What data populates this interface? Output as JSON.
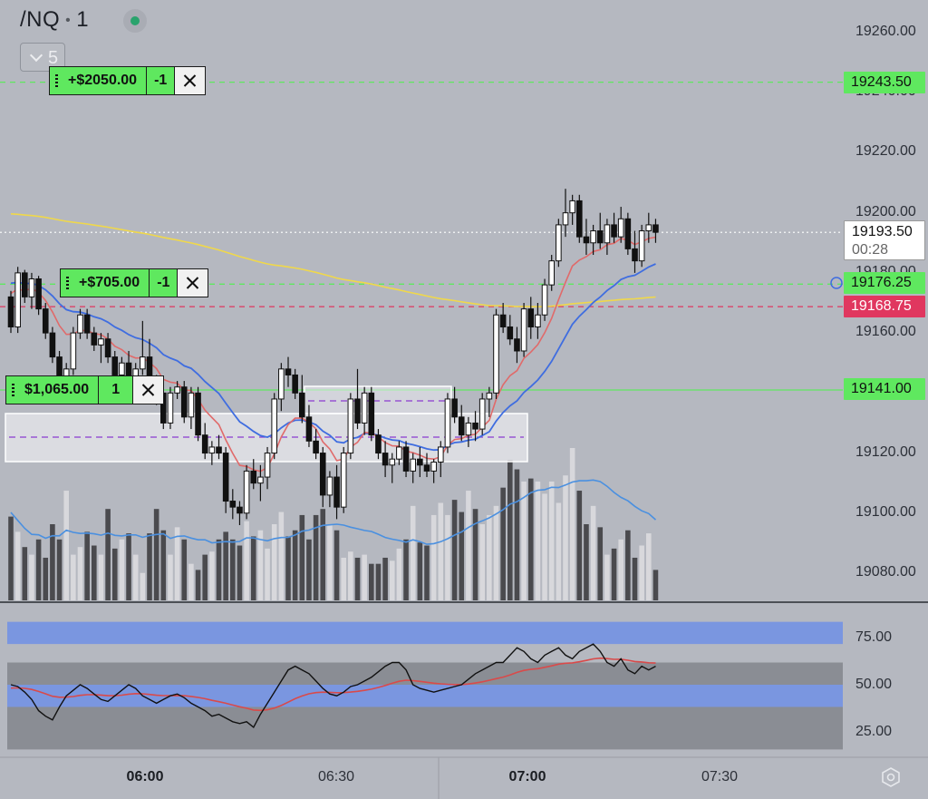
{
  "header": {
    "symbol": "/NQ",
    "interval": "1",
    "interval_selector": "5"
  },
  "price_axis": {
    "ticks": [
      "19260.00",
      "19240.00",
      "19220.00",
      "19200.00",
      "19180.00",
      "19160.00",
      "19140.00",
      "19120.00",
      "19100.00",
      "19080.00"
    ],
    "tick_values": [
      19260,
      19240,
      19220,
      19200,
      19180,
      19160,
      19140,
      19120,
      19100,
      19080
    ]
  },
  "price_tags": {
    "target_1": "19243.50",
    "last_price": "19193.50",
    "countdown": "00:28",
    "target_2": "19176.25",
    "stop": "19168.75",
    "entry": "19141.00"
  },
  "orders": [
    {
      "pnl": "+$2050.00",
      "qty": "-1"
    },
    {
      "pnl": "+$705.00",
      "qty": "-1"
    },
    {
      "pnl": "$1,065.00",
      "qty": "1"
    }
  ],
  "time_axis": {
    "labels": [
      "06:00",
      "06:30",
      "07:00",
      "07:30"
    ],
    "bold": [
      true,
      false,
      true,
      false
    ]
  },
  "oscillator": {
    "ticks": [
      "75.00",
      "50.00",
      "25.00"
    ]
  },
  "colors": {
    "background": "#b5b8c0",
    "up_candle": "#ffffff",
    "down_candle": "#111111",
    "ema_fast": "#e06a6a",
    "ema_slow": "#3f6de0",
    "sma_long": "#f0d84a",
    "target_line": "#5fe85f",
    "stop_line": "#e0375f",
    "volume_up": "#d8d8dc",
    "volume_down": "#4a4a4e",
    "volume_ma": "#4a90e0",
    "osc_band": "#7a96e0",
    "osc_line": "#111111",
    "osc_signal": "#d94a4a"
  },
  "chart_data": {
    "type": "candlestick",
    "ylim": [
      19072,
      19266
    ],
    "candles": [
      [
        19172,
        19174,
        19160,
        19162
      ],
      [
        19162,
        19182,
        19160,
        19180
      ],
      [
        19180,
        19181,
        19170,
        19172
      ],
      [
        19172,
        19180,
        19168,
        19178
      ],
      [
        19178,
        19179,
        19166,
        19168
      ],
      [
        19168,
        19170,
        19158,
        19160
      ],
      [
        19160,
        19162,
        19150,
        19152
      ],
      [
        19152,
        19154,
        19140,
        19144
      ],
      [
        19144,
        19150,
        19142,
        19148
      ],
      [
        19148,
        19162,
        19146,
        19160
      ],
      [
        19160,
        19168,
        19158,
        19166
      ],
      [
        19166,
        19168,
        19158,
        19160
      ],
      [
        19160,
        19162,
        19154,
        19156
      ],
      [
        19156,
        19160,
        19150,
        19158
      ],
      [
        19158,
        19160,
        19150,
        19152
      ],
      [
        19152,
        19154,
        19144,
        19146
      ],
      [
        19146,
        19152,
        19142,
        19150
      ],
      [
        19150,
        19154,
        19142,
        19145
      ],
      [
        19145,
        19150,
        19140,
        19148
      ],
      [
        19148,
        19164,
        19146,
        19152
      ],
      [
        19152,
        19158,
        19142,
        19144
      ],
      [
        19144,
        19146,
        19136,
        19140
      ],
      [
        19140,
        19142,
        19128,
        19130
      ],
      [
        19130,
        19142,
        19128,
        19140
      ],
      [
        19140,
        19144,
        19138,
        19142
      ],
      [
        19142,
        19144,
        19130,
        19132
      ],
      [
        19132,
        19142,
        19128,
        19140
      ],
      [
        19140,
        19142,
        19124,
        19126
      ],
      [
        19126,
        19130,
        19118,
        19120
      ],
      [
        19120,
        19124,
        19116,
        19122
      ],
      [
        19122,
        19126,
        19118,
        19120
      ],
      [
        19120,
        19122,
        19100,
        19104
      ],
      [
        19104,
        19108,
        19098,
        19102
      ],
      [
        19102,
        19104,
        19096,
        19100
      ],
      [
        19100,
        19116,
        19098,
        19114
      ],
      [
        19114,
        19118,
        19108,
        19110
      ],
      [
        19110,
        19116,
        19104,
        19112
      ],
      [
        19112,
        19122,
        19108,
        19120
      ],
      [
        19120,
        19140,
        19118,
        19138
      ],
      [
        19138,
        19150,
        19134,
        19148
      ],
      [
        19148,
        19152,
        19142,
        19146
      ],
      [
        19146,
        19148,
        19138,
        19140
      ],
      [
        19140,
        19146,
        19130,
        19132
      ],
      [
        19132,
        19136,
        19122,
        19124
      ],
      [
        19124,
        19128,
        19118,
        19120
      ],
      [
        19120,
        19122,
        19102,
        19106
      ],
      [
        19106,
        19114,
        19102,
        19112
      ],
      [
        19112,
        19116,
        19098,
        19102
      ],
      [
        19102,
        19122,
        19100,
        19120
      ],
      [
        19120,
        19140,
        19118,
        19138
      ],
      [
        19138,
        19148,
        19128,
        19130
      ],
      [
        19130,
        19142,
        19126,
        19140
      ],
      [
        19140,
        19142,
        19124,
        19126
      ],
      [
        19126,
        19128,
        19118,
        19120
      ],
      [
        19120,
        19124,
        19112,
        19116
      ],
      [
        19116,
        19120,
        19110,
        19118
      ],
      [
        19118,
        19124,
        19116,
        19122
      ],
      [
        19122,
        19124,
        19112,
        19114
      ],
      [
        19114,
        19120,
        19110,
        19118
      ],
      [
        19118,
        19122,
        19112,
        19116
      ],
      [
        19116,
        19120,
        19112,
        19114
      ],
      [
        19114,
        19118,
        19110,
        19117
      ],
      [
        19117,
        19124,
        19112,
        19122
      ],
      [
        19122,
        19140,
        19120,
        19138
      ],
      [
        19138,
        19142,
        19130,
        19132
      ],
      [
        19132,
        19136,
        19124,
        19126
      ],
      [
        19126,
        19132,
        19122,
        19130
      ],
      [
        19130,
        19134,
        19124,
        19128
      ],
      [
        19128,
        19140,
        19126,
        19138
      ],
      [
        19138,
        19142,
        19132,
        19140
      ],
      [
        19140,
        19168,
        19138,
        19166
      ],
      [
        19166,
        19170,
        19160,
        19162
      ],
      [
        19162,
        19166,
        19156,
        19158
      ],
      [
        19158,
        19162,
        19150,
        19154
      ],
      [
        19154,
        19170,
        19152,
        19168
      ],
      [
        19168,
        19172,
        19158,
        19162
      ],
      [
        19162,
        19170,
        19158,
        19166
      ],
      [
        19166,
        19178,
        19164,
        19176
      ],
      [
        19176,
        19186,
        19174,
        19184
      ],
      [
        19184,
        19198,
        19182,
        19196
      ],
      [
        19196,
        19208,
        19192,
        19200
      ],
      [
        19200,
        19206,
        19196,
        19204
      ],
      [
        19204,
        19206,
        19190,
        19192
      ],
      [
        19192,
        19198,
        19186,
        19190
      ],
      [
        19190,
        19196,
        19186,
        19194
      ],
      [
        19194,
        19200,
        19188,
        19190
      ],
      [
        19190,
        19198,
        19186,
        19196
      ],
      [
        19196,
        19200,
        19190,
        19192
      ],
      [
        19192,
        19202,
        19190,
        19198
      ],
      [
        19198,
        19200,
        19186,
        19188
      ],
      [
        19188,
        19194,
        19180,
        19184
      ],
      [
        19184,
        19196,
        19182,
        19194
      ],
      [
        19194,
        19200,
        19190,
        19196
      ],
      [
        19196,
        19198,
        19190,
        19193.5
      ]
    ],
    "volume": [
      55,
      45,
      35,
      30,
      40,
      28,
      50,
      40,
      72,
      30,
      35,
      45,
      36,
      30,
      60,
      34,
      40,
      44,
      30,
      18,
      44,
      60,
      46,
      30,
      48,
      40,
      24,
      20,
      30,
      32,
      40,
      45,
      40,
      36,
      52,
      42,
      46,
      34,
      50,
      58,
      42,
      46,
      56,
      40,
      56,
      60,
      50,
      46,
      28,
      32,
      28,
      30,
      24,
      24,
      28,
      26,
      34,
      40,
      62,
      38,
      36,
      56,
      64,
      56,
      66,
      58,
      72,
      60,
      50,
      56,
      62,
      74,
      92,
      86,
      78,
      80,
      78,
      70,
      78,
      64,
      82,
      100,
      72,
      50,
      62,
      48,
      30,
      34,
      40,
      46,
      28,
      36,
      44,
      20
    ],
    "volume_max": 100,
    "oscillator": [
      50,
      49,
      46,
      42,
      36,
      33,
      31,
      38,
      44,
      47,
      50,
      48,
      45,
      42,
      41,
      44,
      47,
      50,
      48,
      44,
      42,
      40,
      42,
      44,
      45,
      43,
      40,
      38,
      36,
      33,
      34,
      32,
      30,
      29,
      30,
      27,
      34,
      40,
      46,
      52,
      58,
      60,
      58,
      56,
      52,
      48,
      45,
      44,
      46,
      49,
      50,
      52,
      54,
      57,
      60,
      62,
      62,
      58,
      50,
      48,
      47,
      46,
      47,
      48,
      49,
      50,
      53,
      56,
      58,
      60,
      62,
      62,
      66,
      70,
      68,
      64,
      62,
      66,
      68,
      70,
      66,
      64,
      68,
      70,
      72,
      68,
      62,
      60,
      64,
      58,
      56,
      60,
      58,
      60
    ],
    "oscillator_range": [
      0,
      100
    ],
    "overbought_band": [
      70,
      100
    ],
    "mid_band": [
      40,
      60
    ],
    "oversold_band": [
      0,
      30
    ]
  }
}
